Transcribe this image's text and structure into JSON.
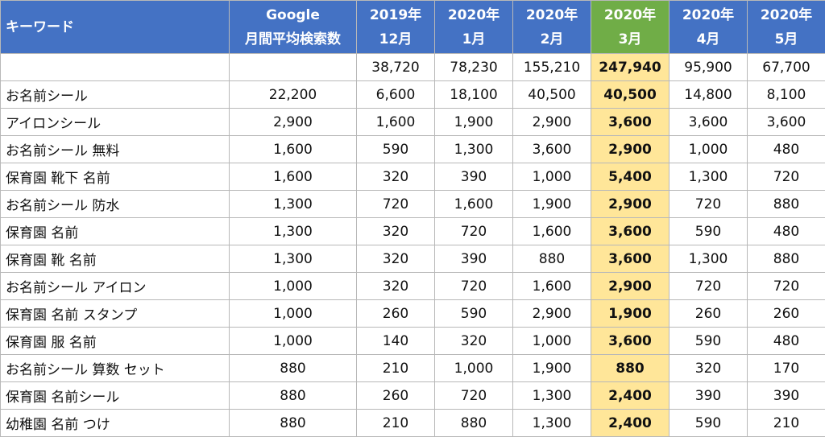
{
  "header": {
    "keyword": "キーワード",
    "google_line1": "Google",
    "google_line2": "月間平均検索数",
    "months": [
      {
        "year": "2019年",
        "month": "12月"
      },
      {
        "year": "2020年",
        "month": "1月"
      },
      {
        "year": "2020年",
        "month": "2月"
      },
      {
        "year": "2020年",
        "month": "3月"
      },
      {
        "year": "2020年",
        "month": "4月"
      },
      {
        "year": "2020年",
        "month": "5月"
      }
    ],
    "highlight_color": "#70ad47",
    "header_color": "#4472c4"
  },
  "rows": [
    {
      "keyword": "",
      "google": "",
      "values": [
        "38,720",
        "78,230",
        "155,210",
        "247,940",
        "95,900",
        "67,700"
      ]
    },
    {
      "keyword": "お名前シール",
      "google": "22,200",
      "values": [
        "6,600",
        "18,100",
        "40,500",
        "40,500",
        "14,800",
        "8,100"
      ]
    },
    {
      "keyword": "アイロンシール",
      "google": "2,900",
      "values": [
        "1,600",
        "1,900",
        "2,900",
        "3,600",
        "3,600",
        "3,600"
      ]
    },
    {
      "keyword": "お名前シール 無料",
      "google": "1,600",
      "values": [
        "590",
        "1,300",
        "3,600",
        "2,900",
        "1,000",
        "480"
      ]
    },
    {
      "keyword": "保育園 靴下 名前",
      "google": "1,600",
      "values": [
        "320",
        "390",
        "1,000",
        "5,400",
        "1,300",
        "720"
      ]
    },
    {
      "keyword": "お名前シール 防水",
      "google": "1,300",
      "values": [
        "720",
        "1,600",
        "1,900",
        "2,900",
        "720",
        "880"
      ]
    },
    {
      "keyword": "保育園 名前",
      "google": "1,300",
      "values": [
        "320",
        "720",
        "1,600",
        "3,600",
        "590",
        "480"
      ]
    },
    {
      "keyword": "保育園 靴 名前",
      "google": "1,300",
      "values": [
        "320",
        "390",
        "880",
        "3,600",
        "1,300",
        "880"
      ]
    },
    {
      "keyword": "お名前シール アイロン",
      "google": "1,000",
      "values": [
        "320",
        "720",
        "1,600",
        "2,900",
        "720",
        "720"
      ]
    },
    {
      "keyword": "保育園 名前 スタンプ",
      "google": "1,000",
      "values": [
        "260",
        "590",
        "2,900",
        "1,900",
        "260",
        "260"
      ]
    },
    {
      "keyword": "保育園 服 名前",
      "google": "1,000",
      "values": [
        "140",
        "320",
        "1,000",
        "3,600",
        "590",
        "480"
      ]
    },
    {
      "keyword": "お名前シール 算数 セット",
      "google": "880",
      "values": [
        "210",
        "1,000",
        "1,900",
        "880",
        "320",
        "170"
      ]
    },
    {
      "keyword": "保育園 名前シール",
      "google": "880",
      "values": [
        "260",
        "720",
        "1,300",
        "2,400",
        "390",
        "390"
      ]
    },
    {
      "keyword": "幼稚園 名前 つけ",
      "google": "880",
      "values": [
        "210",
        "880",
        "1,300",
        "2,400",
        "590",
        "210"
      ]
    }
  ]
}
